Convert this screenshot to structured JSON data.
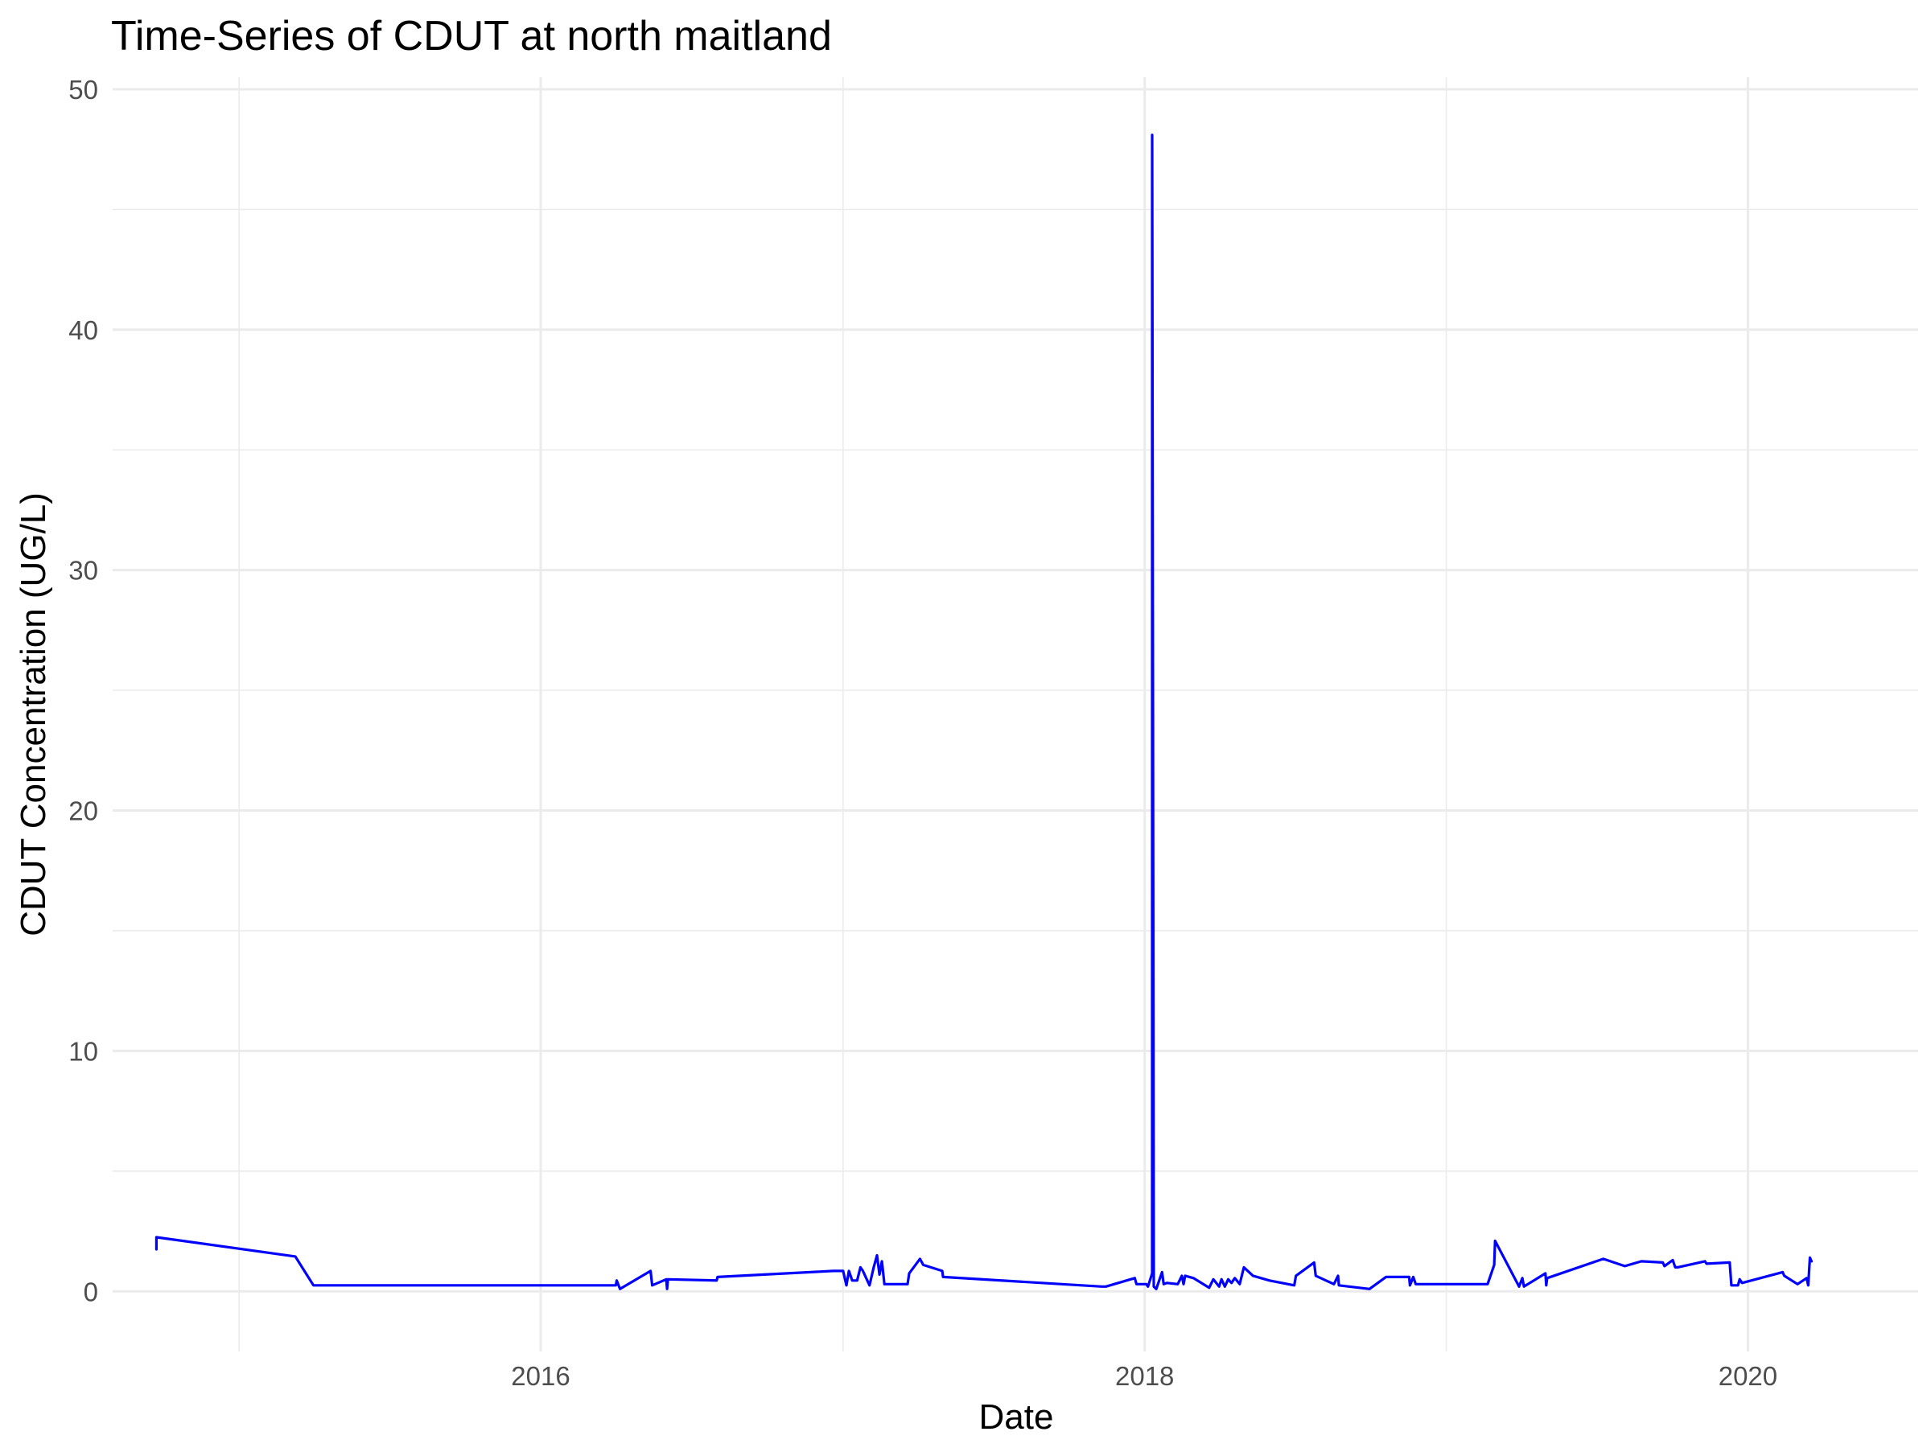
{
  "chart_data": {
    "type": "line",
    "title": "Time-Series of CDUT at north maitland",
    "xlabel": "Date",
    "ylabel": "CDUT Concentration (UG/L)",
    "xlim": [
      "2014-08-01",
      "2020-07-25"
    ],
    "ylim": [
      -2.5,
      50.5
    ],
    "x_ticks": [
      {
        "value": "2016-01-01",
        "label": "2016"
      },
      {
        "value": "2018-01-01",
        "label": "2018"
      },
      {
        "value": "2020-01-01",
        "label": "2020"
      }
    ],
    "x_minor_ticks": [
      "2015-01-01",
      "2017-01-01",
      "2019-01-01"
    ],
    "y_ticks": [
      0,
      10,
      20,
      30,
      40,
      50
    ],
    "y_minor_ticks": [
      5,
      15,
      25,
      35,
      45
    ],
    "grid": true,
    "legend": "none",
    "color": "#0000ff",
    "series": [
      {
        "x": [
          "2014-09-23",
          "2014-09-23",
          "2015-03-10",
          "2015-04-01",
          "2016-04-01",
          "2016-04-02",
          "2016-04-06",
          "2016-05-13",
          "2016-05-15",
          "2016-06-01",
          "2016-06-02",
          "2016-06-03",
          "2016-08-01",
          "2016-08-02",
          "2016-12-20",
          "2017-01-01",
          "2017-01-03",
          "2017-01-05",
          "2017-01-08",
          "2017-01-12",
          "2017-01-18",
          "2017-01-22",
          "2017-01-25",
          "2017-02-02",
          "2017-02-07",
          "2017-02-11",
          "2017-02-14",
          "2017-02-17",
          "2017-02-20",
          "2017-03-01",
          "2017-03-20",
          "2017-03-22",
          "2017-04-04",
          "2017-04-08",
          "2017-05-01",
          "2017-05-02",
          "2017-11-10",
          "2017-11-15",
          "2017-12-20",
          "2017-12-22",
          "2018-01-03",
          "2018-01-05",
          "2018-01-10",
          "2018-01-10",
          "2018-01-12",
          "2018-01-15",
          "2018-01-22",
          "2018-01-24",
          "2018-01-28",
          "2018-02-10",
          "2018-02-15",
          "2018-02-17",
          "2018-02-19",
          "2018-03-01",
          "2018-03-20",
          "2018-03-25",
          "2018-04-01",
          "2018-04-04",
          "2018-04-08",
          "2018-04-12",
          "2018-04-16",
          "2018-04-20",
          "2018-04-26",
          "2018-05-01",
          "2018-05-12",
          "2018-06-01",
          "2018-07-01",
          "2018-07-03",
          "2018-07-25",
          "2018-07-27",
          "2018-08-18",
          "2018-08-23",
          "2018-08-24",
          "2018-09-30",
          "2018-10-20",
          "2018-11-17",
          "2018-11-18",
          "2018-11-22",
          "2018-11-25",
          "2019-02-20",
          "2019-02-28",
          "2019-03-01",
          "2019-03-30",
          "2019-04-03",
          "2019-04-05",
          "2019-05-01",
          "2019-05-02",
          "2019-05-03",
          "2019-07-10",
          "2019-08-05",
          "2019-08-25",
          "2019-09-20",
          "2019-09-22",
          "2019-10-02",
          "2019-10-05",
          "2019-10-08",
          "2019-11-10",
          "2019-11-12",
          "2019-12-10",
          "2019-12-12",
          "2019-12-20",
          "2019-12-22",
          "2019-12-25",
          "2020-02-12",
          "2020-02-14",
          "2020-03-01",
          "2020-03-12",
          "2020-03-14",
          "2020-03-16",
          "2020-03-18"
        ],
        "values": [
          1.75,
          2.25,
          1.45,
          0.25,
          0.25,
          0.45,
          0.1,
          0.85,
          0.25,
          0.5,
          0.1,
          0.5,
          0.45,
          0.6,
          0.85,
          0.85,
          0.55,
          0.25,
          0.85,
          0.45,
          0.45,
          1.0,
          0.85,
          0.25,
          1.0,
          1.5,
          0.7,
          1.25,
          0.3,
          0.3,
          0.3,
          0.75,
          1.35,
          1.1,
          0.85,
          0.6,
          0.2,
          0.2,
          0.55,
          0.3,
          0.3,
          0.2,
          0.75,
          48.1,
          0.2,
          0.1,
          0.8,
          0.3,
          0.35,
          0.3,
          0.65,
          0.3,
          0.65,
          0.55,
          0.15,
          0.5,
          0.2,
          0.5,
          0.2,
          0.5,
          0.35,
          0.55,
          0.3,
          1.0,
          0.65,
          0.45,
          0.25,
          0.65,
          1.2,
          0.65,
          0.3,
          0.65,
          0.25,
          0.1,
          0.6,
          0.6,
          0.25,
          0.6,
          0.3,
          0.3,
          1.1,
          2.1,
          0.2,
          0.55,
          0.2,
          0.75,
          0.25,
          0.55,
          1.35,
          1.05,
          1.25,
          1.2,
          1.05,
          1.3,
          1.0,
          1.0,
          1.25,
          1.15,
          1.2,
          0.25,
          0.25,
          0.5,
          0.35,
          0.8,
          0.65,
          0.3,
          0.55,
          0.25,
          1.4,
          1.25
        ]
      }
    ]
  }
}
